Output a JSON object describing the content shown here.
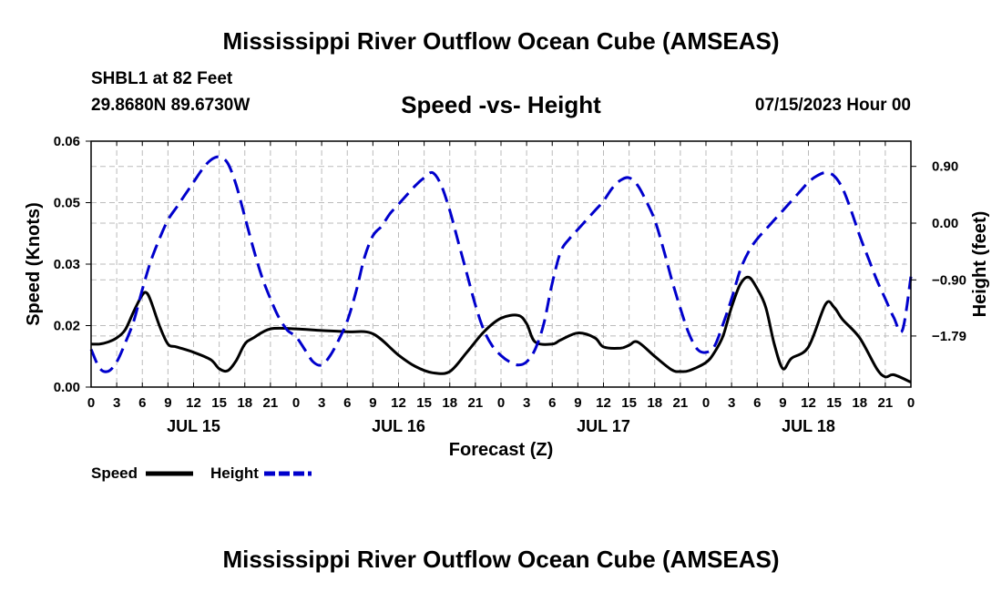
{
  "header": {
    "title": "Mississippi River Outflow Ocean Cube (AMSEAS)",
    "station": "SHBL1 at 82 Feet",
    "coordinates": "29.8680N  89.6730W",
    "subtitle": "Speed -vs- Height",
    "datetime": "07/15/2023 Hour 00"
  },
  "footer": {
    "title": "Mississippi River Outflow Ocean Cube (AMSEAS)"
  },
  "chart_data": {
    "type": "line",
    "title": "Speed -vs- Height",
    "xlabel": "Forecast (Z)",
    "ylabel": "Speed (Knots)",
    "y2label": "Height (feet)",
    "x_range": [
      0,
      96
    ],
    "ylim": [
      0,
      0.06
    ],
    "y2lim": [
      -2.6,
      1.3
    ],
    "grid": true,
    "x_ticks": [
      0,
      3,
      6,
      9,
      12,
      15,
      18,
      21,
      24,
      27,
      30,
      33,
      36,
      39,
      42,
      45,
      48,
      51,
      54,
      57,
      60,
      63,
      66,
      69,
      72,
      75,
      78,
      81,
      84,
      87,
      90,
      93,
      96
    ],
    "x_tick_labels": [
      "0",
      "3",
      "6",
      "9",
      "12",
      "15",
      "18",
      "21",
      "0",
      "3",
      "6",
      "9",
      "12",
      "15",
      "18",
      "21",
      "0",
      "3",
      "6",
      "9",
      "12",
      "15",
      "18",
      "21",
      "0",
      "3",
      "6",
      "9",
      "12",
      "15",
      "18",
      "21",
      "0"
    ],
    "day_labels": [
      {
        "label": "JUL 15",
        "at": 12
      },
      {
        "label": "JUL 16",
        "at": 36
      },
      {
        "label": "JUL 17",
        "at": 60
      },
      {
        "label": "JUL 18",
        "at": 84
      }
    ],
    "y_tick_labels": [
      "0.00",
      "0.02",
      "0.03",
      "0.05",
      "0.06"
    ],
    "y_tick_values": [
      0,
      0.015,
      0.03,
      0.045,
      0.06
    ],
    "y2_tick_labels": [
      "0.90",
      "0.00",
      "−0.90",
      "−1.79"
    ],
    "y2_tick_values": [
      0.9,
      0.0,
      -0.9,
      -1.79
    ],
    "legend": [
      {
        "name": "Speed",
        "color": "#000000",
        "style": "solid"
      },
      {
        "name": "Height",
        "color": "#0000cc",
        "style": "dashed"
      }
    ],
    "series": [
      {
        "name": "Speed",
        "axis": "left",
        "color": "#000000",
        "x": [
          0,
          1,
          2,
          3,
          4,
          5,
          6,
          6.5,
          7,
          8,
          9,
          10,
          12,
          14,
          15,
          16,
          17,
          18,
          19,
          21,
          24,
          27,
          30,
          33,
          36,
          38,
          40,
          42,
          44,
          46,
          48,
          50,
          51,
          52,
          54,
          55,
          57,
          59,
          60,
          62,
          63,
          64,
          66,
          68,
          69,
          70,
          72,
          73,
          74,
          75,
          76,
          77,
          78,
          79,
          80,
          81,
          82,
          84,
          86,
          87,
          88,
          90,
          92,
          93,
          94,
          96
        ],
        "values": [
          0.0105,
          0.0105,
          0.011,
          0.012,
          0.014,
          0.0185,
          0.0225,
          0.023,
          0.021,
          0.015,
          0.0105,
          0.0098,
          0.0085,
          0.0067,
          0.0045,
          0.004,
          0.0065,
          0.0105,
          0.012,
          0.0142,
          0.0142,
          0.0138,
          0.0135,
          0.013,
          0.0078,
          0.005,
          0.0035,
          0.0038,
          0.0085,
          0.0135,
          0.0168,
          0.0175,
          0.0155,
          0.011,
          0.0105,
          0.0115,
          0.0132,
          0.012,
          0.0098,
          0.0095,
          0.0102,
          0.011,
          0.0075,
          0.0042,
          0.0038,
          0.004,
          0.006,
          0.0085,
          0.0125,
          0.0195,
          0.025,
          0.0268,
          0.024,
          0.0195,
          0.0105,
          0.0045,
          0.007,
          0.0098,
          0.0202,
          0.0195,
          0.0165,
          0.012,
          0.0045,
          0.0025,
          0.003,
          0.0012
        ]
      },
      {
        "name": "Height",
        "axis": "right",
        "color": "#0000cc",
        "x": [
          0,
          1,
          2,
          3,
          4,
          5,
          6,
          7,
          8,
          9,
          10,
          11,
          12,
          13,
          14,
          15,
          16,
          17,
          18,
          19,
          20,
          21,
          22,
          23,
          24,
          25,
          26,
          27,
          28,
          29,
          30,
          31,
          32,
          33,
          34,
          35,
          36,
          37,
          38,
          39,
          40,
          41,
          42,
          43,
          44,
          45,
          46,
          47,
          48,
          49,
          50,
          51,
          52,
          53,
          54,
          55,
          56,
          57,
          58,
          59,
          60,
          61,
          62,
          63,
          64,
          65,
          66,
          67,
          68,
          69,
          70,
          71,
          72,
          73,
          74,
          75,
          76,
          77,
          78,
          79,
          80,
          81,
          82,
          83,
          84,
          85,
          86,
          87,
          88,
          89,
          90,
          91,
          92,
          93,
          94,
          95,
          96
        ],
        "values": [
          -2.0,
          -2.3,
          -2.35,
          -2.2,
          -1.9,
          -1.55,
          -1.05,
          -0.6,
          -0.25,
          0.05,
          0.25,
          0.45,
          0.65,
          0.85,
          1.0,
          1.05,
          0.95,
          0.6,
          0.1,
          -0.4,
          -0.85,
          -1.2,
          -1.5,
          -1.7,
          -1.8,
          -2.0,
          -2.2,
          -2.25,
          -2.1,
          -1.85,
          -1.55,
          -1.1,
          -0.55,
          -0.2,
          -0.05,
          0.15,
          0.3,
          0.45,
          0.6,
          0.72,
          0.8,
          0.6,
          0.2,
          -0.3,
          -0.8,
          -1.3,
          -1.7,
          -1.95,
          -2.1,
          -2.2,
          -2.25,
          -2.2,
          -2.0,
          -1.6,
          -0.95,
          -0.45,
          -0.25,
          -0.1,
          0.05,
          0.2,
          0.35,
          0.55,
          0.68,
          0.72,
          0.6,
          0.35,
          0.05,
          -0.4,
          -0.9,
          -1.35,
          -1.75,
          -2.0,
          -2.05,
          -1.95,
          -1.6,
          -1.2,
          -0.75,
          -0.45,
          -0.25,
          -0.1,
          0.05,
          0.2,
          0.35,
          0.5,
          0.65,
          0.75,
          0.8,
          0.75,
          0.55,
          0.2,
          -0.2,
          -0.55,
          -0.9,
          -1.2,
          -1.5,
          -1.7,
          -0.85
        ]
      }
    ]
  }
}
